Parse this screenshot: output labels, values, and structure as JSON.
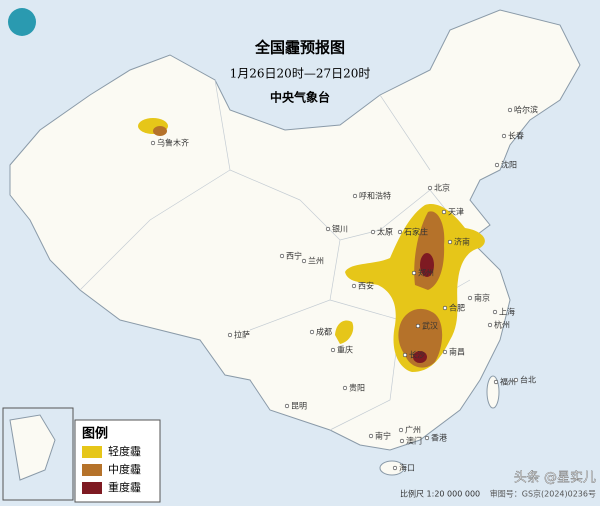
{
  "header": {
    "title": "全国霾预报图",
    "subtitle": "1月26日20时—27日20时",
    "issuer": "中央气象台"
  },
  "legend": {
    "title": "图例",
    "items": [
      {
        "label": "轻度霾",
        "color": "#e6c619"
      },
      {
        "label": "中度霾",
        "color": "#b5722a"
      },
      {
        "label": "重度霾",
        "color": "#7e1a22"
      }
    ]
  },
  "cities": [
    "乌鲁木齐",
    "呼和浩特",
    "北京",
    "天津",
    "石家庄",
    "太原",
    "济南",
    "银川",
    "西宁",
    "兰州",
    "郑州",
    "西安",
    "合肥",
    "南京",
    "上海",
    "杭州",
    "成都",
    "重庆",
    "武汉",
    "长沙",
    "南昌",
    "拉萨",
    "贵阳",
    "昆明",
    "福州",
    "台北",
    "南宁",
    "广州",
    "澳门",
    "香港",
    "海口",
    "哈尔滨",
    "长春",
    "沈阳"
  ],
  "footer": {
    "scale": "比例尺 1:20 000 000",
    "approval": "审图号：GS京(2024)0236号",
    "watermark": "头条 @星实儿"
  }
}
